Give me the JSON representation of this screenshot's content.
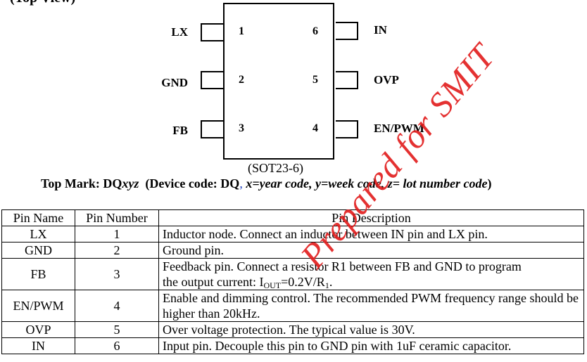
{
  "heading_fragment": "(Top View)",
  "package": {
    "label": "(SOT23-6)",
    "pins": [
      {
        "side": "left",
        "name": "LX",
        "number": "1"
      },
      {
        "side": "left",
        "name": "GND",
        "number": "2"
      },
      {
        "side": "left",
        "name": "FB",
        "number": "3"
      },
      {
        "side": "right",
        "name": "EN/PWM",
        "number": "4"
      },
      {
        "side": "right",
        "name": "OVP",
        "number": "5"
      },
      {
        "side": "right",
        "name": "IN",
        "number": "6"
      }
    ]
  },
  "top_mark": {
    "label": "Top Mark: DQ",
    "code": "xyz",
    "note_prefix": "(Device code: DQ",
    "note_comma": ",",
    "note_codes": "x=year code, y=week code, z= lot number code",
    "note_suffix": ")"
  },
  "table": {
    "headers": [
      "Pin Name",
      "Pin Number",
      "Pin Description"
    ],
    "rows": [
      {
        "name": "LX",
        "number": "1",
        "desc": "Inductor node. Connect an inductor between IN pin and LX pin."
      },
      {
        "name": "GND",
        "number": "2",
        "desc": "Ground pin."
      },
      {
        "name": "FB",
        "number": "3",
        "desc_a": "Feedback pin. Connect a resistor R1 between FB and GND to program",
        "desc_b": "the output current: I",
        "sub1": "OUT",
        "desc_c": "=0.2V/R",
        "sub2": "1",
        "desc_d": "."
      },
      {
        "name": "EN/PWM",
        "number": "4",
        "desc": "Enable and dimming control. The recommended PWM frequency range should be higher than 20kHz."
      },
      {
        "name": "OVP",
        "number": "5",
        "desc": "Over voltage protection. The typical value is 30V."
      },
      {
        "name": "IN",
        "number": "6",
        "desc": "Input pin. Decouple this pin to GND pin with 1uF ceramic capacitor."
      }
    ]
  },
  "watermark": "Prepared for SMIT",
  "colors": {
    "watermark": "#e21b1b",
    "link_blue": "#1f3fbf"
  }
}
